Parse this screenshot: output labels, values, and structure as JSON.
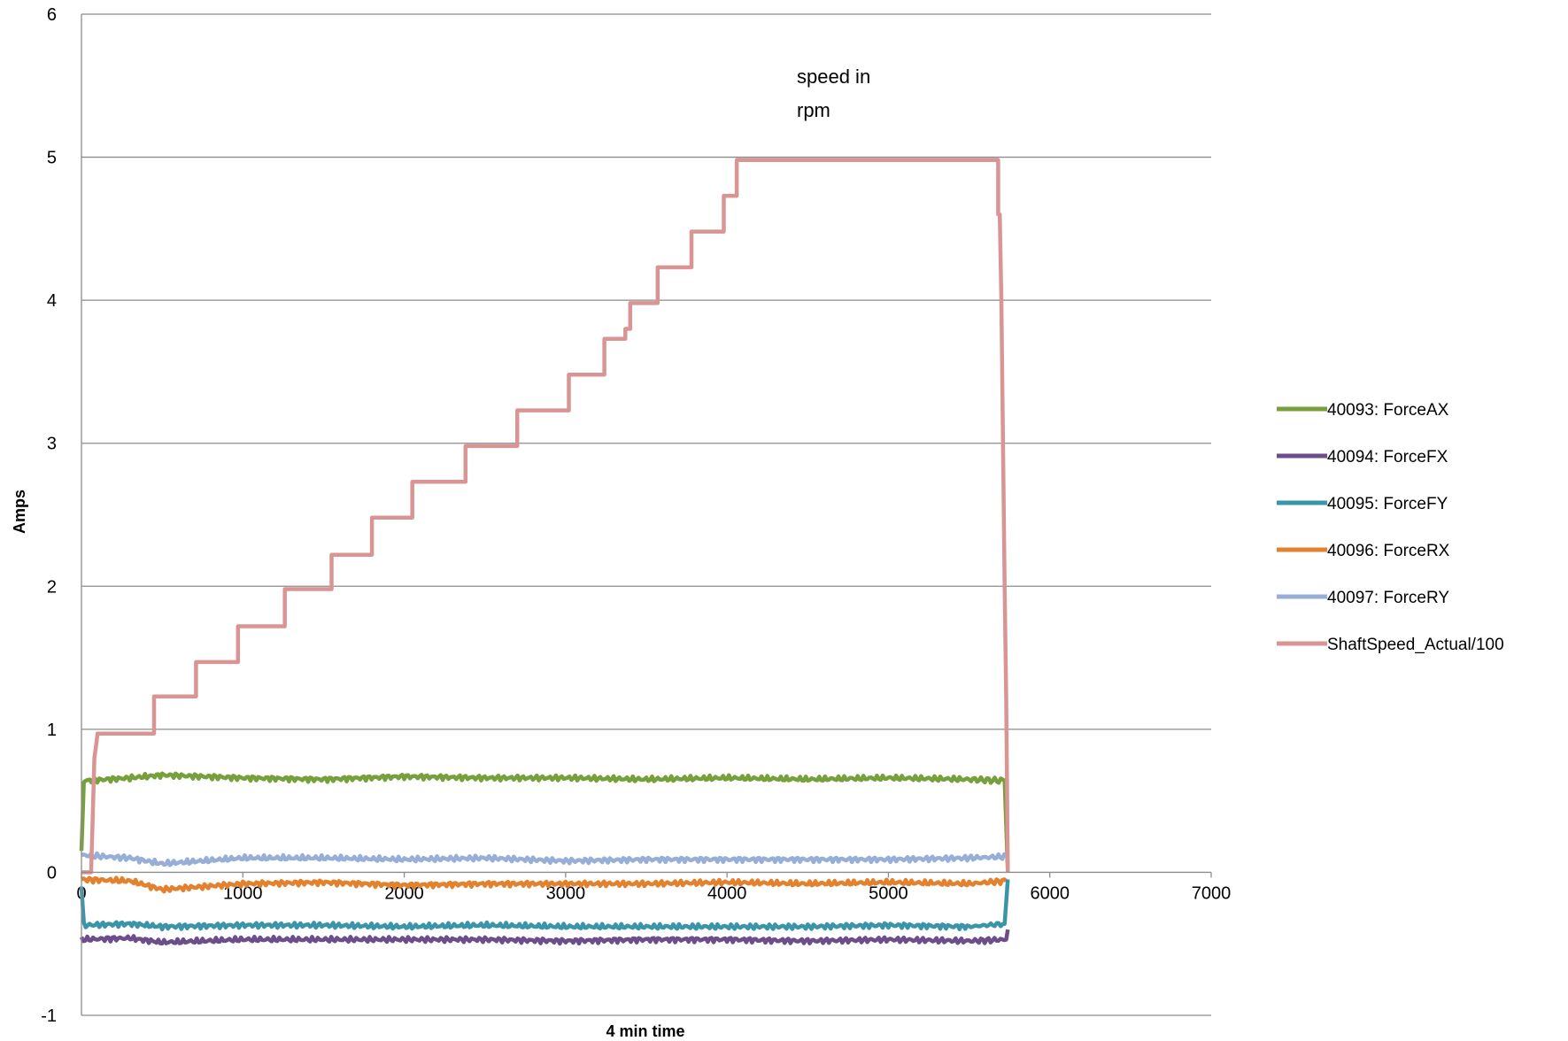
{
  "chart_data": {
    "type": "line",
    "title": "",
    "xlabel": "4 min  time",
    "ylabel": "Amps",
    "xlim": [
      0,
      7000
    ],
    "ylim": [
      -1,
      6
    ],
    "x_ticks": [
      0,
      1000,
      2000,
      3000,
      4000,
      5000,
      6000,
      7000
    ],
    "y_ticks": [
      -1,
      0,
      1,
      2,
      3,
      4,
      5,
      6
    ],
    "grid": "horizontal major gridlines",
    "legend_position": "right",
    "annotation": [
      "speed in",
      "rpm"
    ],
    "series": [
      {
        "name": "40093:  ForceAX",
        "color": "#77A03C",
        "points": [
          [
            0,
            0.15
          ],
          [
            15,
            0.64
          ],
          [
            300,
            0.66
          ],
          [
            500,
            0.68
          ],
          [
            1000,
            0.66
          ],
          [
            1500,
            0.65
          ],
          [
            2000,
            0.67
          ],
          [
            2500,
            0.66
          ],
          [
            3000,
            0.66
          ],
          [
            3500,
            0.65
          ],
          [
            4000,
            0.66
          ],
          [
            4500,
            0.65
          ],
          [
            5000,
            0.66
          ],
          [
            5500,
            0.65
          ],
          [
            5720,
            0.64
          ],
          [
            5740,
            0.0
          ]
        ]
      },
      {
        "name": "40094:  ForceFX",
        "color": "#6B4E8A",
        "points": [
          [
            0,
            -0.47
          ],
          [
            300,
            -0.46
          ],
          [
            500,
            -0.49
          ],
          [
            1000,
            -0.47
          ],
          [
            1500,
            -0.47
          ],
          [
            2000,
            -0.47
          ],
          [
            2500,
            -0.47
          ],
          [
            3000,
            -0.48
          ],
          [
            3500,
            -0.47
          ],
          [
            4000,
            -0.47
          ],
          [
            4500,
            -0.48
          ],
          [
            5000,
            -0.47
          ],
          [
            5500,
            -0.48
          ],
          [
            5730,
            -0.47
          ],
          [
            5740,
            -0.4
          ]
        ]
      },
      {
        "name": "40095:  ForceFY",
        "color": "#3A95A9",
        "points": [
          [
            0,
            -0.1
          ],
          [
            15,
            -0.37
          ],
          [
            300,
            -0.36
          ],
          [
            500,
            -0.38
          ],
          [
            1000,
            -0.37
          ],
          [
            1500,
            -0.37
          ],
          [
            2000,
            -0.38
          ],
          [
            2500,
            -0.37
          ],
          [
            3000,
            -0.38
          ],
          [
            3500,
            -0.38
          ],
          [
            4000,
            -0.38
          ],
          [
            4500,
            -0.38
          ],
          [
            5000,
            -0.37
          ],
          [
            5500,
            -0.38
          ],
          [
            5720,
            -0.36
          ],
          [
            5740,
            -0.05
          ]
        ]
      },
      {
        "name": "40096:  ForceRX",
        "color": "#E3822E",
        "points": [
          [
            0,
            -0.05
          ],
          [
            300,
            -0.06
          ],
          [
            500,
            -0.12
          ],
          [
            1000,
            -0.08
          ],
          [
            1500,
            -0.07
          ],
          [
            2000,
            -0.09
          ],
          [
            2500,
            -0.08
          ],
          [
            3000,
            -0.08
          ],
          [
            3500,
            -0.08
          ],
          [
            4000,
            -0.07
          ],
          [
            4500,
            -0.08
          ],
          [
            5000,
            -0.07
          ],
          [
            5500,
            -0.08
          ],
          [
            5730,
            -0.06
          ]
        ]
      },
      {
        "name": "40097:  ForceRY",
        "color": "#97AFD6",
        "points": [
          [
            0,
            0.12
          ],
          [
            300,
            0.1
          ],
          [
            500,
            0.06
          ],
          [
            1000,
            0.1
          ],
          [
            1500,
            0.1
          ],
          [
            2000,
            0.09
          ],
          [
            2500,
            0.1
          ],
          [
            3000,
            0.08
          ],
          [
            3500,
            0.09
          ],
          [
            4000,
            0.09
          ],
          [
            4500,
            0.09
          ],
          [
            5000,
            0.09
          ],
          [
            5500,
            0.1
          ],
          [
            5730,
            0.11
          ]
        ]
      },
      {
        "name": "ShaftSpeed_Actual/100",
        "color": "#D99594",
        "points": [
          [
            0,
            0.0
          ],
          [
            60,
            0.0
          ],
          [
            70,
            0.4
          ],
          [
            80,
            0.8
          ],
          [
            90,
            0.88
          ],
          [
            100,
            0.97
          ],
          [
            450,
            0.97
          ],
          [
            450,
            1.23
          ],
          [
            710,
            1.23
          ],
          [
            710,
            1.47
          ],
          [
            970,
            1.47
          ],
          [
            970,
            1.72
          ],
          [
            1260,
            1.72
          ],
          [
            1260,
            1.98
          ],
          [
            1550,
            1.98
          ],
          [
            1550,
            2.22
          ],
          [
            1800,
            2.22
          ],
          [
            1800,
            2.48
          ],
          [
            2050,
            2.48
          ],
          [
            2050,
            2.73
          ],
          [
            2380,
            2.73
          ],
          [
            2380,
            2.98
          ],
          [
            2700,
            2.98
          ],
          [
            2700,
            3.23
          ],
          [
            3020,
            3.23
          ],
          [
            3020,
            3.48
          ],
          [
            3240,
            3.48
          ],
          [
            3240,
            3.73
          ],
          [
            3370,
            3.73
          ],
          [
            3370,
            3.8
          ],
          [
            3400,
            3.8
          ],
          [
            3400,
            3.98
          ],
          [
            3570,
            3.98
          ],
          [
            3570,
            4.23
          ],
          [
            3780,
            4.23
          ],
          [
            3780,
            4.48
          ],
          [
            3980,
            4.48
          ],
          [
            3980,
            4.73
          ],
          [
            4060,
            4.73
          ],
          [
            4060,
            4.98
          ],
          [
            5680,
            4.98
          ],
          [
            5680,
            4.6
          ],
          [
            5690,
            4.6
          ],
          [
            5700,
            4.0
          ],
          [
            5720,
            2.0
          ],
          [
            5730,
            1.2
          ],
          [
            5740,
            0.0
          ]
        ]
      }
    ]
  }
}
